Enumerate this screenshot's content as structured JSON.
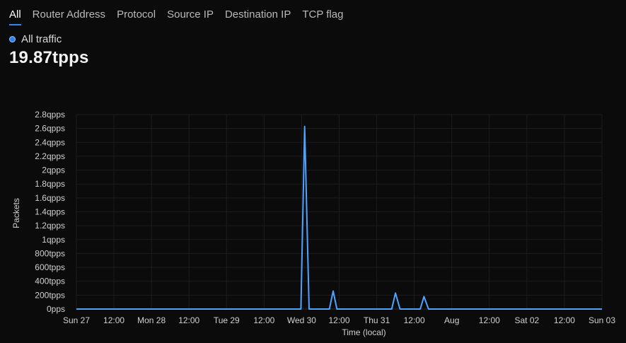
{
  "tabs": [
    {
      "label": "All",
      "active": true
    },
    {
      "label": "Router Address",
      "active": false
    },
    {
      "label": "Protocol",
      "active": false
    },
    {
      "label": "Source IP",
      "active": false
    },
    {
      "label": "Destination IP",
      "active": false
    },
    {
      "label": "TCP flag",
      "active": false
    }
  ],
  "legend": {
    "label": "All traffic",
    "color": "#2f80ed"
  },
  "summary": {
    "value": "19.87tpps"
  },
  "chart_data": {
    "type": "line",
    "xlabel": "Time (local)",
    "ylabel": "Packets",
    "line_color": "#4da3ff",
    "grid": true,
    "x_range": [
      0,
      7
    ],
    "x_ticks": [
      {
        "pos": 0.0,
        "label": "Sun 27"
      },
      {
        "pos": 0.5,
        "label": "12:00"
      },
      {
        "pos": 1.0,
        "label": "Mon 28"
      },
      {
        "pos": 1.5,
        "label": "12:00"
      },
      {
        "pos": 2.0,
        "label": "Tue 29"
      },
      {
        "pos": 2.5,
        "label": "12:00"
      },
      {
        "pos": 3.0,
        "label": "Wed 30"
      },
      {
        "pos": 3.5,
        "label": "12:00"
      },
      {
        "pos": 4.0,
        "label": "Thu 31"
      },
      {
        "pos": 4.5,
        "label": "12:00"
      },
      {
        "pos": 5.0,
        "label": "Aug"
      },
      {
        "pos": 5.5,
        "label": "12:00"
      },
      {
        "pos": 6.0,
        "label": "Sat 02"
      },
      {
        "pos": 6.5,
        "label": "12:00"
      },
      {
        "pos": 7.0,
        "label": "Sun 03"
      }
    ],
    "y_range": [
      0,
      2800
    ],
    "y_ticks": [
      {
        "value": 0,
        "label": "0pps"
      },
      {
        "value": 200,
        "label": "200tpps"
      },
      {
        "value": 400,
        "label": "400tpps"
      },
      {
        "value": 600,
        "label": "600tpps"
      },
      {
        "value": 800,
        "label": "800tpps"
      },
      {
        "value": 1000,
        "label": "1qpps"
      },
      {
        "value": 1200,
        "label": "1.2qpps"
      },
      {
        "value": 1400,
        "label": "1.4qpps"
      },
      {
        "value": 1600,
        "label": "1.6qpps"
      },
      {
        "value": 1800,
        "label": "1.8qpps"
      },
      {
        "value": 2000,
        "label": "2qpps"
      },
      {
        "value": 2200,
        "label": "2.2qpps"
      },
      {
        "value": 2400,
        "label": "2.4qpps"
      },
      {
        "value": 2600,
        "label": "2.6qpps"
      },
      {
        "value": 2800,
        "label": "2.8qpps"
      }
    ],
    "series": [
      {
        "points": [
          [
            0.0,
            0
          ],
          [
            2.99,
            0
          ],
          [
            3.04,
            2630
          ],
          [
            3.1,
            0
          ],
          [
            3.37,
            0
          ],
          [
            3.42,
            260
          ],
          [
            3.47,
            0
          ],
          [
            4.2,
            0
          ],
          [
            4.25,
            230
          ],
          [
            4.31,
            0
          ],
          [
            4.58,
            0
          ],
          [
            4.63,
            180
          ],
          [
            4.69,
            0
          ],
          [
            7.0,
            0
          ]
        ]
      }
    ]
  }
}
